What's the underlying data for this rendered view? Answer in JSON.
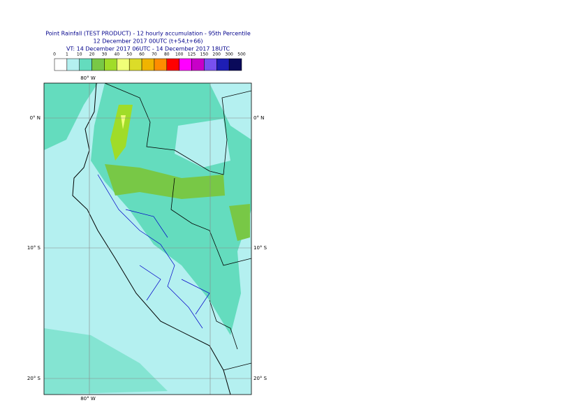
{
  "header": {
    "title": "Point Rainfall (TEST PRODUCT) - 12 hourly accumulation - 95th Percentile",
    "subtitle": "12 December 2017 00UTC (t+54,t+66)",
    "valid_time": "VT: 14 December 2017 06UTC - 14 December 2017 18UTC"
  },
  "colorbar": {
    "labels": [
      "0",
      "1",
      "10",
      "20",
      "30",
      "40",
      "50",
      "60",
      "70",
      "80",
      "100",
      "125",
      "150",
      "200",
      "300",
      "500"
    ],
    "colors": [
      "#ffffff",
      "#b4f0f0",
      "#64dcbe",
      "#78c846",
      "#a0dc28",
      "#f0ff78",
      "#dcdc28",
      "#f0b400",
      "#ff8c00",
      "#ff0000",
      "#ff00ff",
      "#c800c8",
      "#7850f0",
      "#1e1eb4",
      "#0a0a5a"
    ]
  },
  "map": {
    "lon_label_top": "80° W",
    "lon_label_bottom": "80° W",
    "lat_labels_left": [
      "0° N",
      "10° S",
      "20° S"
    ],
    "lat_labels_right": [
      "0° N",
      "10° S",
      "20° S"
    ]
  }
}
